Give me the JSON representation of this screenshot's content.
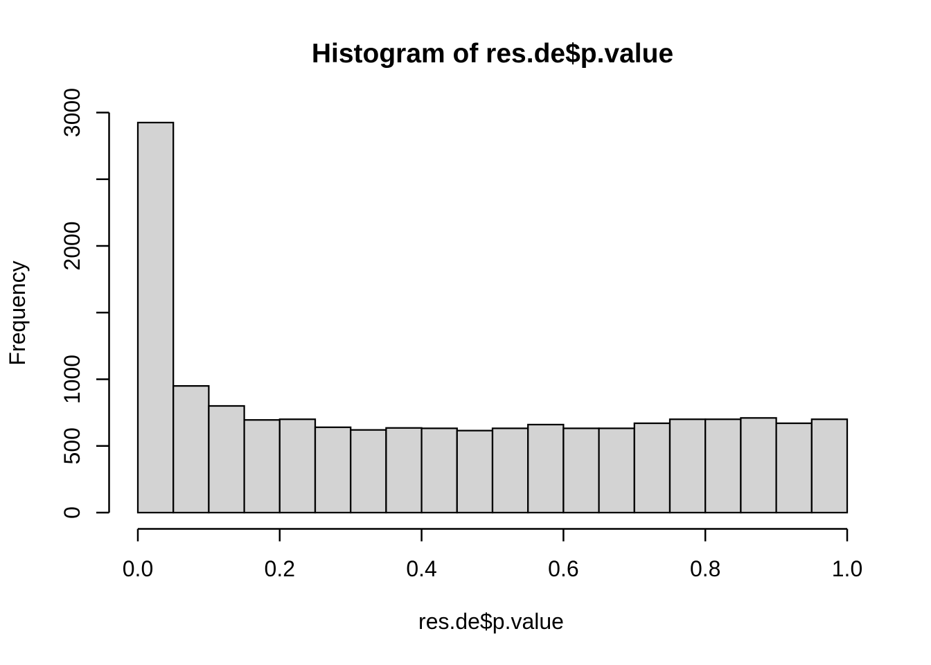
{
  "figure": {
    "title": "Histogram of res.de$p.value",
    "xlabel": "res.de$p.value",
    "ylabel": "Frequency"
  },
  "chart_data": {
    "type": "bar",
    "subtype": "histogram",
    "title": "Histogram of res.de$p.value",
    "xlabel": "res.de$p.value",
    "ylabel": "Frequency",
    "bin_start": 0.0,
    "bin_width": 0.05,
    "frequencies": [
      2925,
      950,
      800,
      695,
      700,
      640,
      620,
      635,
      632,
      615,
      632,
      660,
      632,
      632,
      670,
      700,
      700,
      710,
      670,
      700
    ],
    "xlim": [
      0.0,
      1.0
    ],
    "ylim": [
      0,
      3000
    ],
    "x_ticks": [
      0.0,
      0.2,
      0.4,
      0.6,
      0.8,
      1.0
    ],
    "x_tick_labels": [
      "0.0",
      "0.2",
      "0.4",
      "0.6",
      "0.8",
      "1.0"
    ],
    "y_ticks": [
      0,
      500,
      1000,
      1500,
      2000,
      2500,
      3000
    ],
    "y_tick_labels": [
      "0",
      "500",
      "1000",
      "",
      "2000",
      "",
      "3000"
    ],
    "grid": false,
    "legend": null,
    "colors": {
      "bar_fill": "#d3d3d3",
      "bar_stroke": "#000000",
      "axis": "#000000",
      "text": "#000000",
      "background": "#ffffff"
    }
  }
}
